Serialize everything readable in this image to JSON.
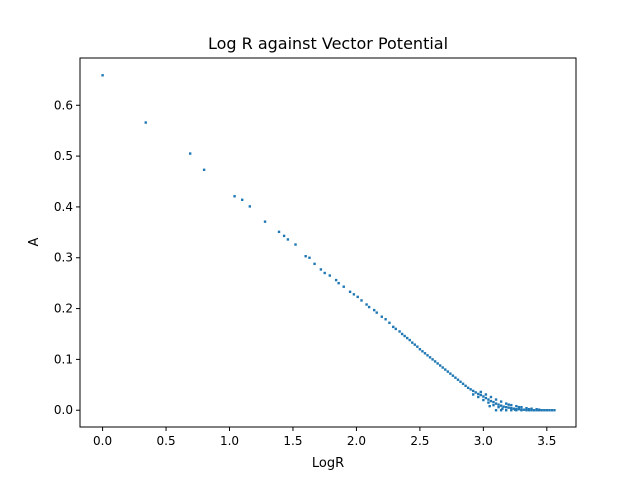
{
  "chart_data": {
    "type": "scatter",
    "title": "Log R against Vector Potential",
    "xlabel": "LogR",
    "ylabel": "A",
    "xlim": [
      -0.178,
      3.73
    ],
    "ylim": [
      -0.033,
      0.693
    ],
    "x_ticks": [
      0.0,
      0.5,
      1.0,
      1.5,
      2.0,
      2.5,
      3.0,
      3.5
    ],
    "x_tick_labels": [
      "0.0",
      "0.5",
      "1.0",
      "1.5",
      "2.0",
      "2.5",
      "3.0",
      "3.5"
    ],
    "y_ticks": [
      0.0,
      0.1,
      0.2,
      0.3,
      0.4,
      0.5,
      0.6
    ],
    "y_tick_labels": [
      "0.0",
      "0.1",
      "0.2",
      "0.3",
      "0.4",
      "0.5",
      "0.6"
    ],
    "grid": false,
    "series": [
      {
        "color": "#1f77b4",
        "points": [
          [
            0.0,
            0.659
          ],
          [
            0.34,
            0.566
          ],
          [
            0.69,
            0.505
          ],
          [
            0.8,
            0.473
          ],
          [
            1.04,
            0.421
          ],
          [
            1.1,
            0.414
          ],
          [
            1.16,
            0.401
          ],
          [
            1.28,
            0.371
          ],
          [
            1.39,
            0.351
          ],
          [
            1.43,
            0.343
          ],
          [
            1.46,
            0.336
          ],
          [
            1.52,
            0.326
          ],
          [
            1.6,
            0.303
          ],
          [
            1.63,
            0.3
          ],
          [
            1.67,
            0.288
          ],
          [
            1.72,
            0.277
          ],
          [
            1.75,
            0.27
          ],
          [
            1.79,
            0.265
          ],
          [
            1.84,
            0.256
          ],
          [
            1.86,
            0.25
          ],
          [
            1.9,
            0.243
          ],
          [
            1.95,
            0.233
          ],
          [
            1.98,
            0.228
          ],
          [
            2.01,
            0.223
          ],
          [
            2.04,
            0.216
          ],
          [
            2.08,
            0.208
          ],
          [
            2.1,
            0.203
          ],
          [
            2.14,
            0.197
          ],
          [
            2.16,
            0.192
          ],
          [
            2.2,
            0.184
          ],
          [
            2.23,
            0.179
          ],
          [
            2.26,
            0.172
          ],
          [
            2.29,
            0.164
          ],
          [
            2.31,
            0.16
          ],
          [
            2.34,
            0.155
          ],
          [
            2.36,
            0.15
          ],
          [
            2.38,
            0.146
          ],
          [
            2.4,
            0.142
          ],
          [
            2.42,
            0.138
          ],
          [
            2.44,
            0.133
          ],
          [
            2.46,
            0.129
          ],
          [
            2.48,
            0.125
          ],
          [
            2.5,
            0.12
          ],
          [
            2.52,
            0.116
          ],
          [
            2.54,
            0.112
          ],
          [
            2.56,
            0.108
          ],
          [
            2.58,
            0.104
          ],
          [
            2.6,
            0.1
          ],
          [
            2.62,
            0.096
          ],
          [
            2.64,
            0.092
          ],
          [
            2.66,
            0.088
          ],
          [
            2.68,
            0.084
          ],
          [
            2.7,
            0.08
          ],
          [
            2.72,
            0.076
          ],
          [
            2.74,
            0.072
          ],
          [
            2.76,
            0.068
          ],
          [
            2.78,
            0.064
          ],
          [
            2.8,
            0.06
          ],
          [
            2.82,
            0.056
          ],
          [
            2.84,
            0.052
          ],
          [
            2.86,
            0.048
          ],
          [
            2.88,
            0.044
          ],
          [
            2.9,
            0.041
          ],
          [
            2.92,
            0.038
          ],
          [
            2.94,
            0.035
          ],
          [
            2.96,
            0.032
          ],
          [
            2.98,
            0.03
          ],
          [
            3.0,
            0.027
          ],
          [
            3.02,
            0.024
          ],
          [
            3.04,
            0.021
          ],
          [
            3.06,
            0.018
          ],
          [
            3.08,
            0.016
          ],
          [
            3.1,
            0.013
          ],
          [
            3.12,
            0.011
          ],
          [
            3.14,
            0.009
          ],
          [
            3.16,
            0.007
          ],
          [
            3.18,
            0.006
          ],
          [
            3.2,
            0.005
          ],
          [
            3.22,
            0.004
          ],
          [
            3.24,
            0.003
          ],
          [
            3.26,
            0.002
          ],
          [
            3.28,
            0.002
          ],
          [
            3.3,
            0.001
          ],
          [
            3.32,
            0.001
          ],
          [
            3.34,
            0.001
          ],
          [
            3.36,
            0.0
          ],
          [
            3.38,
            0.0
          ],
          [
            3.4,
            0.0
          ],
          [
            3.42,
            0.0
          ],
          [
            3.44,
            0.0
          ],
          [
            3.46,
            0.0
          ],
          [
            3.48,
            0.0
          ],
          [
            3.5,
            0.0
          ],
          [
            3.52,
            0.0
          ],
          [
            3.54,
            0.0
          ],
          [
            3.56,
            0.0
          ],
          [
            2.98,
            0.036
          ],
          [
            3.02,
            0.031
          ],
          [
            3.06,
            0.026
          ],
          [
            3.1,
            0.021
          ],
          [
            3.14,
            0.017
          ],
          [
            3.18,
            0.013
          ],
          [
            3.22,
            0.01
          ],
          [
            3.26,
            0.008
          ],
          [
            3.3,
            0.006
          ],
          [
            3.34,
            0.004
          ],
          [
            3.38,
            0.003
          ],
          [
            3.42,
            0.002
          ],
          [
            2.92,
            0.031
          ],
          [
            2.96,
            0.026
          ],
          [
            3.0,
            0.02
          ],
          [
            3.04,
            0.015
          ],
          [
            3.08,
            0.01
          ],
          [
            3.12,
            0.006
          ],
          [
            3.1,
            0.0
          ],
          [
            3.14,
            0.0
          ],
          [
            3.18,
            0.0
          ],
          [
            3.22,
            0.0
          ],
          [
            3.26,
            0.0
          ],
          [
            3.3,
            0.0
          ],
          [
            3.34,
            0.0
          ],
          [
            3.05,
            0.008
          ],
          [
            3.15,
            0.003
          ],
          [
            3.25,
            0.001
          ],
          [
            3.2,
            0.011
          ],
          [
            3.28,
            0.006
          ],
          [
            3.36,
            0.002
          ],
          [
            3.44,
            0.001
          ]
        ]
      }
    ]
  }
}
